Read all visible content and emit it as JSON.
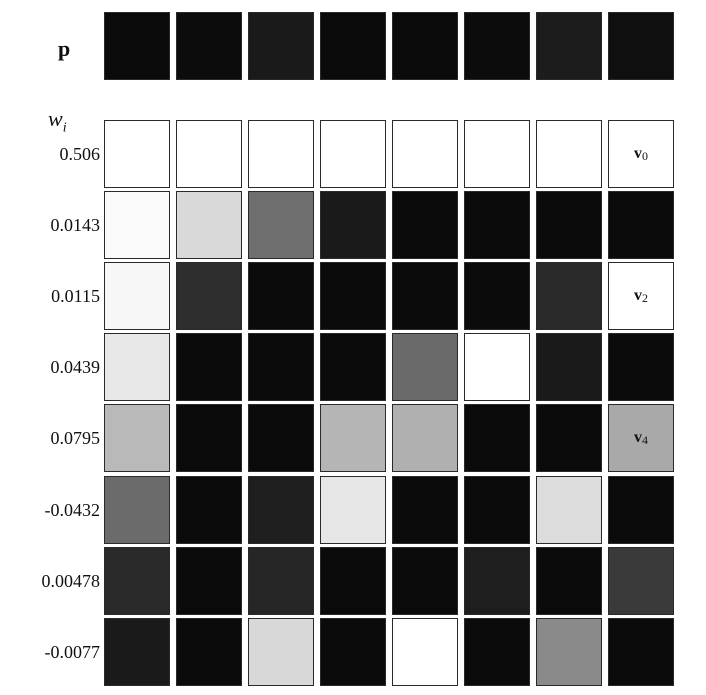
{
  "labels": {
    "p": "p",
    "w_base": "w",
    "w_sub": "i"
  },
  "p_row": [
    "#0a0a0a",
    "#0c0c0c",
    "#1a1a1a",
    "#0a0a0a",
    "#0a0a0a",
    "#0c0c0c",
    "#1c1c1c",
    "#0f0f0f"
  ],
  "rows": [
    {
      "weight": "0.506",
      "cells": [
        "#ffffff",
        "#ffffff",
        "#ffffff",
        "#ffffff",
        "#ffffff",
        "#ffffff",
        "#ffffff",
        "#ffffff"
      ],
      "label": {
        "base": "v",
        "sub": "0"
      }
    },
    {
      "weight": "0.0143",
      "cells": [
        "#fafafa",
        "#d9d9d9",
        "#6e6e6e",
        "#1a1a1a",
        "#0a0a0a",
        "#0a0a0a",
        "#0a0a0a",
        "#0a0a0a"
      ],
      "label": null
    },
    {
      "weight": "0.0115",
      "cells": [
        "#f7f7f7",
        "#2e2e2e",
        "#0a0a0a",
        "#0a0a0a",
        "#0a0a0a",
        "#0a0a0a",
        "#2a2a2a",
        "#ffffff"
      ],
      "label": {
        "base": "v",
        "sub": "2"
      }
    },
    {
      "weight": "0.0439",
      "cells": [
        "#e8e8e8",
        "#0a0a0a",
        "#0a0a0a",
        "#0a0a0a",
        "#6a6a6a",
        "#ffffff",
        "#1a1a1a",
        "#0a0a0a"
      ],
      "label": null
    },
    {
      "weight": "0.0795",
      "cells": [
        "#b9b9b9",
        "#0a0a0a",
        "#0a0a0a",
        "#b5b5b5",
        "#b0b0b0",
        "#0a0a0a",
        "#0a0a0a",
        "#a9a9a9"
      ],
      "label": {
        "base": "v",
        "sub": "4"
      }
    },
    {
      "weight": "-0.0432",
      "cells": [
        "#6b6b6b",
        "#0a0a0a",
        "#1e1e1e",
        "#e6e6e6",
        "#0a0a0a",
        "#0a0a0a",
        "#dcdcdc",
        "#0a0a0a"
      ],
      "label": null
    },
    {
      "weight": "0.00478",
      "cells": [
        "#2a2a2a",
        "#0a0a0a",
        "#262626",
        "#0a0a0a",
        "#0a0a0a",
        "#1e1e1e",
        "#0a0a0a",
        "#3a3a3a"
      ],
      "label": null
    },
    {
      "weight": "-0.0077",
      "cells": [
        "#1a1a1a",
        "#0a0a0a",
        "#d8d8d8",
        "#0a0a0a",
        "#ffffff",
        "#0a0a0a",
        "#8a8a8a",
        "#0a0a0a"
      ],
      "label": null
    }
  ]
}
